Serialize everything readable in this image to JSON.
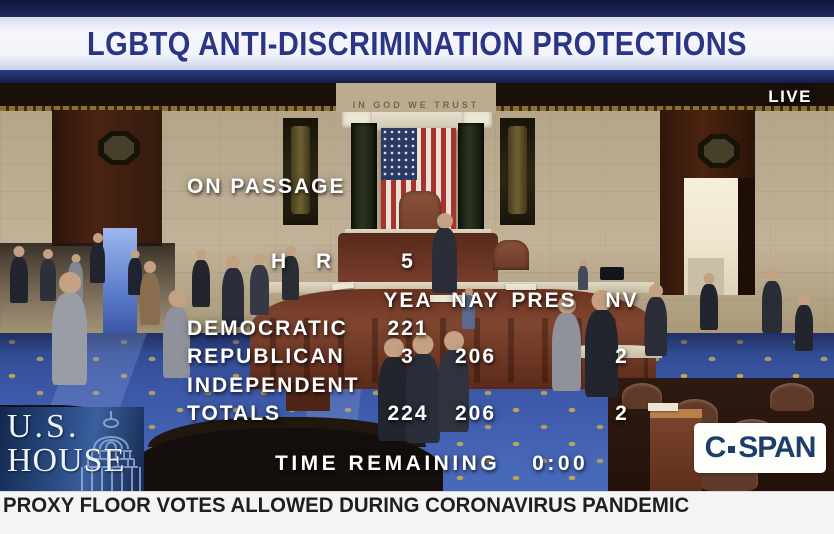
{
  "banner": {
    "title": "LGBTQ ANTI-DISCRIMINATION PROTECTIONS"
  },
  "live_badge": "LIVE",
  "scene": {
    "inscription": "IN GOD WE TRUST"
  },
  "vote_overlay": {
    "measure": "ON PASSAGE",
    "bill_prefix": "H R",
    "bill_number": "5",
    "columns": [
      "YEA",
      "NAY",
      "PRES",
      "NV"
    ],
    "rows": [
      {
        "label": "DEMOCRATIC",
        "yea": "221",
        "nay": "",
        "pres": "",
        "nv": ""
      },
      {
        "label": "REPUBLICAN",
        "yea": "3",
        "nay": "206",
        "pres": "",
        "nv": "2"
      },
      {
        "label": "INDEPENDENT",
        "yea": "",
        "nay": "",
        "pres": "",
        "nv": ""
      },
      {
        "label": "TOTALS",
        "yea": "224",
        "nay": "206",
        "pres": "",
        "nv": "2"
      }
    ],
    "time_remaining_label": "TIME REMAINING",
    "time_remaining_value": "0:00"
  },
  "logos": {
    "us_house_line1": "U.S.",
    "us_house_line2": "HOUSE",
    "cspan_c": "C",
    "cspan_span": "SPAN"
  },
  "ticker": {
    "text": "PROXY FLOOR VOTES ALLOWED DURING CORONAVIRUS PANDEMIC"
  },
  "colors": {
    "banner_navy": "#131d49",
    "banner_title_blue": "#2b3585",
    "cspan_navy": "#1c3e6b",
    "carpet_blue": "#3a55a4",
    "overlay_text": "#ffffff",
    "ticker_bg": "#f4f4f4",
    "ticker_text": "#1f1f1f"
  }
}
